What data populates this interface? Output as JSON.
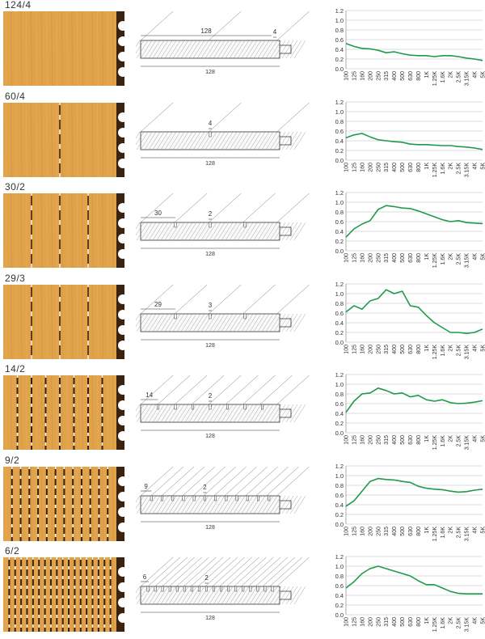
{
  "colors": {
    "wood": "#e0a24a",
    "wood_light": "#edb964",
    "wood_grain": "#c88a34",
    "back": "#3a2210",
    "line": "#1e9a4a",
    "grid": "#cfcfcf",
    "ink": "#333333"
  },
  "panel_width_label": "128",
  "frequency_labels": [
    "100",
    "125",
    "160",
    "200",
    "250",
    "315",
    "400",
    "500",
    "630",
    "800",
    "1K",
    "1.25K",
    "1.6K",
    "2K",
    "2.5K",
    "3.15K",
    "4K",
    "5K"
  ],
  "y_ticks": [
    "0.0",
    "0.2",
    "0.4",
    "0.6",
    "0.8",
    "1.0",
    "1.2"
  ],
  "chart_data": [
    {
      "type": "line",
      "title": "124/4",
      "top_label": "128",
      "slot_label": "4",
      "slots": 0,
      "ylim": [
        0,
        1.2
      ],
      "values": [
        0.52,
        0.46,
        0.42,
        0.41,
        0.38,
        0.33,
        0.35,
        0.31,
        0.28,
        0.27,
        0.27,
        0.25,
        0.27,
        0.27,
        0.25,
        0.22,
        0.2,
        0.17
      ]
    },
    {
      "type": "line",
      "title": "60/4",
      "top_label": "",
      "slot_label": "4",
      "slots": 1,
      "ylim": [
        0,
        1.2
      ],
      "values": [
        0.46,
        0.52,
        0.55,
        0.48,
        0.42,
        0.4,
        0.38,
        0.37,
        0.33,
        0.32,
        0.32,
        0.31,
        0.3,
        0.3,
        0.28,
        0.27,
        0.25,
        0.22
      ]
    },
    {
      "type": "line",
      "title": "30/2",
      "top_label": "30",
      "slot_label": "2",
      "slots": 3,
      "ylim": [
        0,
        1.2
      ],
      "values": [
        0.28,
        0.45,
        0.55,
        0.62,
        0.85,
        0.93,
        0.91,
        0.88,
        0.87,
        0.82,
        0.76,
        0.7,
        0.64,
        0.6,
        0.62,
        0.58,
        0.57,
        0.56
      ]
    },
    {
      "type": "line",
      "title": "29/3",
      "top_label": "29",
      "slot_label": "3",
      "slots": 3,
      "ylim": [
        0,
        1.2
      ],
      "values": [
        0.62,
        0.75,
        0.68,
        0.85,
        0.9,
        1.08,
        1.0,
        1.05,
        0.75,
        0.72,
        0.55,
        0.4,
        0.3,
        0.2,
        0.2,
        0.18,
        0.2,
        0.27
      ]
    },
    {
      "type": "line",
      "title": "14/2",
      "top_label": "14",
      "slot_label": "2",
      "slots": 7,
      "ylim": [
        0,
        1.2
      ],
      "values": [
        0.42,
        0.65,
        0.8,
        0.82,
        0.92,
        0.87,
        0.8,
        0.82,
        0.74,
        0.77,
        0.68,
        0.65,
        0.68,
        0.62,
        0.6,
        0.61,
        0.63,
        0.66
      ]
    },
    {
      "type": "line",
      "title": "9/2",
      "top_label": "9",
      "slot_label": "2",
      "slots": 12,
      "ylim": [
        0,
        1.2
      ],
      "values": [
        0.37,
        0.48,
        0.68,
        0.88,
        0.94,
        0.92,
        0.91,
        0.88,
        0.86,
        0.78,
        0.74,
        0.72,
        0.71,
        0.68,
        0.66,
        0.67,
        0.7,
        0.72
      ]
    },
    {
      "type": "line",
      "title": "6/2",
      "top_label": "6",
      "slot_label": "2",
      "slots": 18,
      "ylim": [
        0,
        1.2
      ],
      "values": [
        0.55,
        0.68,
        0.85,
        0.95,
        1.0,
        0.95,
        0.9,
        0.85,
        0.8,
        0.7,
        0.62,
        0.62,
        0.55,
        0.48,
        0.44,
        0.43,
        0.43,
        0.43
      ]
    }
  ]
}
